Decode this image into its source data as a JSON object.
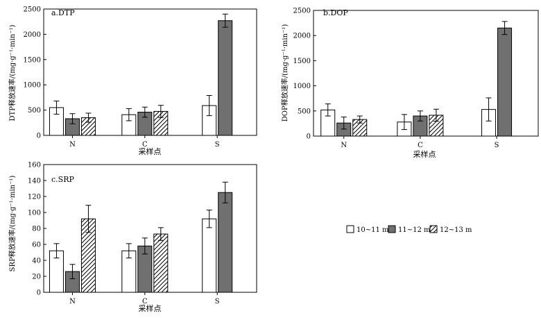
{
  "legend": {
    "placement": "right-middle",
    "items": [
      {
        "label": "10~11 m",
        "fill": "white"
      },
      {
        "label": "11~12 m",
        "fill": "gray"
      },
      {
        "label": "12~13 m",
        "fill": "hatch"
      }
    ]
  },
  "colors": {
    "gray": "#707070",
    "stroke": "#000000",
    "background": "#ffffff"
  },
  "chart_data": [
    {
      "type": "bar",
      "title": "a.DTP",
      "xlabel": "采样点",
      "ylabel": "DTP释放速率/(mg·g⁻¹·min⁻¹)",
      "categories": [
        "N",
        "C",
        "S"
      ],
      "ylim": [
        0,
        2500
      ],
      "yticks": [
        0,
        500,
        1000,
        1500,
        2000,
        2500
      ],
      "ytick_labels": [
        "0",
        "500",
        "1000",
        "1500",
        "2000",
        "2500"
      ],
      "grid": false,
      "series": [
        {
          "name": "10~11 m",
          "values": [
            550,
            410,
            590
          ],
          "errors": [
            130,
            120,
            200
          ]
        },
        {
          "name": "11~12 m",
          "values": [
            330,
            460,
            2270
          ],
          "errors": [
            100,
            100,
            130
          ]
        },
        {
          "name": "12~13 m",
          "values": [
            350,
            475,
            null
          ],
          "errors": [
            90,
            120,
            null
          ]
        }
      ]
    },
    {
      "type": "bar",
      "title": "b.DOP",
      "xlabel": "采样点",
      "ylabel": "DOP释放速率/(mg·g⁻¹·min⁻¹)",
      "categories": [
        "N",
        "C",
        "S"
      ],
      "ylim": [
        0,
        2500
      ],
      "yticks": [
        0,
        500,
        1000,
        1500,
        2000,
        2500
      ],
      "ytick_labels": [
        "0",
        "500",
        "1000",
        "1500",
        "2000",
        "2500"
      ],
      "grid": false,
      "series": [
        {
          "name": "10~11 m",
          "values": [
            520,
            280,
            530
          ],
          "errors": [
            120,
            150,
            230
          ]
        },
        {
          "name": "11~12 m",
          "values": [
            260,
            400,
            2150
          ],
          "errors": [
            120,
            100,
            130
          ]
        },
        {
          "name": "12~13 m",
          "values": [
            330,
            415,
            null
          ],
          "errors": [
            70,
            120,
            null
          ]
        }
      ]
    },
    {
      "type": "bar",
      "title": "c.SRP",
      "xlabel": "采样点",
      "ylabel": "SRP释放速率/(mg·g⁻¹·min⁻¹)",
      "categories": [
        "N",
        "C",
        "S"
      ],
      "ylim": [
        0,
        160
      ],
      "yticks": [
        0,
        20,
        40,
        60,
        80,
        100,
        120,
        140,
        160
      ],
      "ytick_labels": [
        "0",
        "20",
        "40",
        "60",
        "80",
        "100",
        "120",
        "140",
        "160"
      ],
      "grid": false,
      "series": [
        {
          "name": "10~11 m",
          "values": [
            52,
            52,
            92
          ],
          "errors": [
            9,
            9,
            11
          ]
        },
        {
          "name": "11~12 m",
          "values": [
            26,
            58,
            125
          ],
          "errors": [
            9,
            10,
            13
          ]
        },
        {
          "name": "12~13 m",
          "values": [
            92,
            73,
            null
          ],
          "errors": [
            17,
            8,
            null
          ]
        }
      ]
    }
  ]
}
